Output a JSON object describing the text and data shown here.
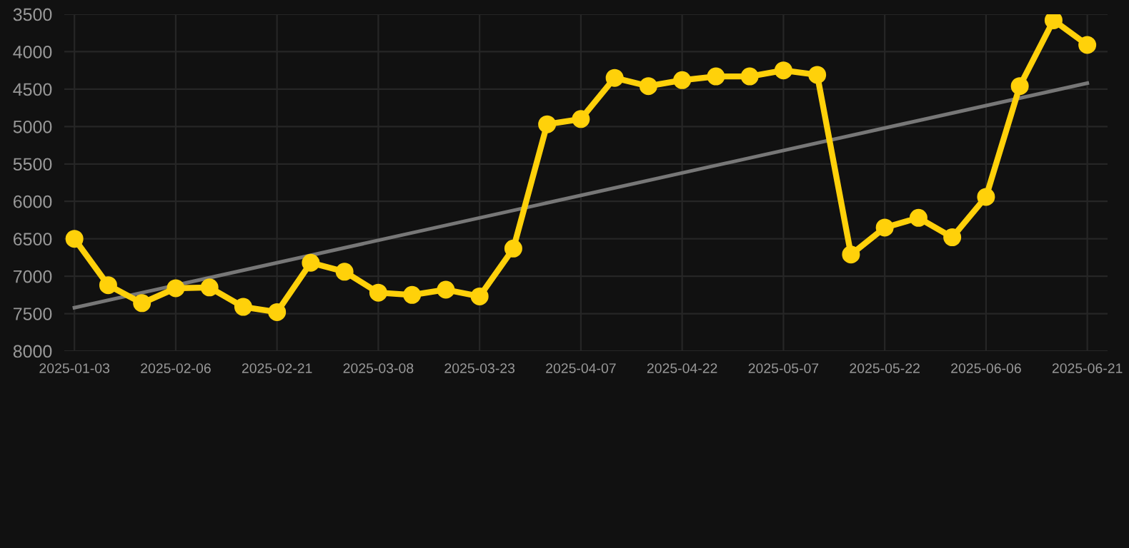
{
  "chart_data": {
    "type": "line",
    "categories": [
      "2025-01-03",
      null,
      null,
      "2025-02-06",
      null,
      null,
      "2025-02-21",
      null,
      null,
      "2025-03-08",
      null,
      null,
      "2025-03-23",
      null,
      null,
      "2025-04-07",
      null,
      null,
      "2025-04-22",
      null,
      null,
      "2025-05-07",
      null,
      null,
      "2025-05-22",
      null,
      null,
      "2025-06-06",
      null,
      null,
      "2025-06-21"
    ],
    "series": [
      {
        "color": "#ffd10a",
        "marker": "circle",
        "values": [
          6500,
          7120,
          7360,
          7160,
          7150,
          7410,
          7480,
          6820,
          6940,
          7220,
          7250,
          7180,
          7270,
          6630,
          4970,
          4900,
          4350,
          4460,
          4380,
          4330,
          4330,
          4250,
          4310,
          6710,
          6350,
          6220,
          6480,
          5940,
          4460,
          3580,
          3910
        ]
      },
      {
        "color": "#777777",
        "marker": "none",
        "values": [
          7420,
          null,
          null,
          null,
          null,
          null,
          null,
          null,
          null,
          null,
          null,
          null,
          null,
          null,
          null,
          null,
          null,
          null,
          null,
          null,
          null,
          null,
          null,
          null,
          null,
          null,
          null,
          null,
          null,
          null,
          4420
        ]
      }
    ],
    "ylim": [
      8000,
      3500
    ],
    "yticks": [
      3500,
      4000,
      4500,
      5000,
      5500,
      6000,
      6500,
      7000,
      7500,
      8000
    ],
    "grid": true,
    "line_style": "solid"
  }
}
